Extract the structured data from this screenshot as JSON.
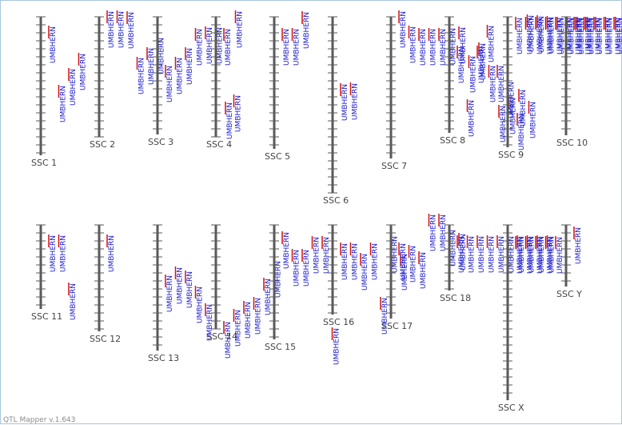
{
  "app": {
    "footer": "QTL Mapper v.1.643"
  },
  "colors": {
    "axis": "#5a5a5a",
    "label": "#1a1ad4",
    "marker": "#d01010",
    "text": "#444444"
  },
  "qtl_label": "UMBHERN",
  "chromosomes": [
    {
      "name": "SSC 1",
      "length": 173,
      "qtl": [
        11,
        85,
        64,
        45
      ]
    },
    {
      "name": "SSC 2",
      "length": 150,
      "qtl": [
        -8,
        -8,
        -7,
        50,
        38,
        25
      ]
    },
    {
      "name": "SSC 3",
      "length": 147,
      "qtl": [
        60,
        50,
        38,
        14,
        12,
        12,
        106,
        -8
      ]
    },
    {
      "name": "SSC 4",
      "length": 150,
      "qtl": [
        14,
        97
      ]
    },
    {
      "name": "SSC 5",
      "length": 165,
      "qtl": [
        14,
        14,
        -7
      ]
    },
    {
      "name": "SSC 6",
      "length": 220,
      "qtl": [
        83,
        82
      ]
    },
    {
      "name": "SSC 7",
      "length": 177,
      "qtl": [
        -8,
        11,
        14,
        14,
        14,
        13,
        12,
        48,
        32,
        60,
        110,
        100,
        90,
        105
      ]
    },
    {
      "name": "SSC 8",
      "length": 145,
      "qtl": [
        36,
        103,
        36,
        10,
        60,
        80,
        120,
        -3,
        -2,
        -1,
        0,
        0,
        0,
        0
      ]
    },
    {
      "name": "SSC 9",
      "length": 163,
      "qtl": [
        0,
        0,
        0,
        0,
        0,
        0,
        0,
        0,
        0,
        0,
        0,
        0,
        0,
        0,
        0
      ]
    },
    {
      "name": "SSC 10",
      "length": 148,
      "qtl": [
        0,
        0,
        0,
        0,
        0,
        0,
        0,
        0,
        112,
        88
      ]
    },
    {
      "name": "SSC 11",
      "length": 105,
      "qtl": [
        12,
        12,
        72
      ]
    },
    {
      "name": "SSC 12",
      "length": 133,
      "qtl": [
        12
      ]
    },
    {
      "name": "SSC 13",
      "length": 157,
      "qtl": [
        62,
        52,
        57,
        76,
        98
      ]
    },
    {
      "name": "SSC 14",
      "length": 130,
      "qtl": [
        120,
        105,
        95,
        90,
        66,
        44
      ]
    },
    {
      "name": "SSC 15",
      "length": 143,
      "qtl": [
        8,
        30,
        30,
        14,
        14,
        128
      ]
    },
    {
      "name": "SSC 16",
      "length": 112,
      "qtl": [
        22,
        22,
        35,
        22,
        90,
        13,
        35
      ]
    },
    {
      "name": "SSC 17",
      "length": 117,
      "qtl": [
        22,
        25,
        33,
        -14,
        -14,
        5,
        10
      ]
    },
    {
      "name": "SSC 18",
      "length": 82,
      "qtl": [
        13,
        13,
        13,
        13,
        13,
        13,
        13,
        13,
        13,
        13
      ]
    },
    {
      "name": "SSC X",
      "length": 219,
      "qtl": [
        14,
        14,
        14,
        14,
        14
      ]
    },
    {
      "name": "SSC Y",
      "length": 77,
      "qtl": [
        2
      ]
    }
  ]
}
